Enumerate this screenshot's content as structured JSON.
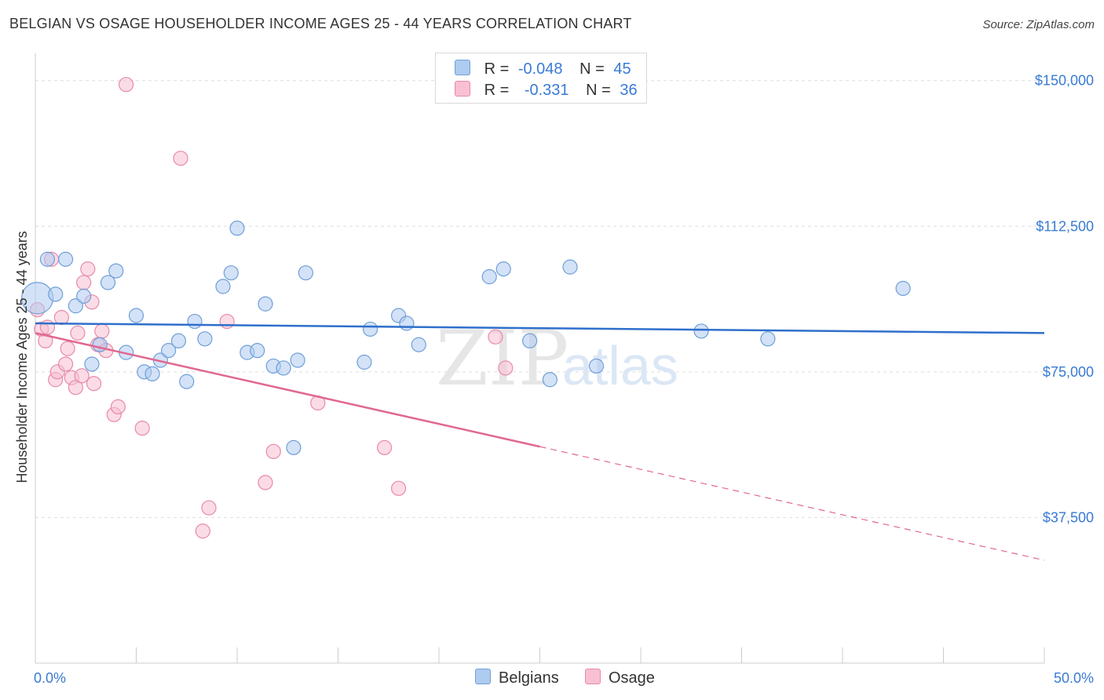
{
  "title": "BELGIAN VS OSAGE HOUSEHOLDER INCOME AGES 25 - 44 YEARS CORRELATION CHART",
  "source": "Source: ZipAtlas.com",
  "watermark": {
    "zip": "ZIP",
    "atlas": "atlas"
  },
  "legend": {
    "belgians": {
      "r_label": "R =",
      "r_value": "-0.048",
      "n_label": "N =",
      "n_value": "45"
    },
    "osage": {
      "r_label": "R =",
      "r_value": "-0.331",
      "n_label": "N =",
      "n_value": "36"
    }
  },
  "bottom_legend": {
    "belgians": "Belgians",
    "osage": "Osage"
  },
  "colors": {
    "belgians_fill": "#aecbf0",
    "belgians_stroke": "#6f9fd8",
    "belgians_line": "#2f6fcc",
    "osage_fill": "#f8c0d2",
    "osage_stroke": "#e88aa8",
    "osage_line": "#e06891",
    "axis_text": "#3a7bd5",
    "grid": "#dddddd"
  },
  "chart_data": {
    "type": "scatter",
    "title": "BELGIAN VS OSAGE HOUSEHOLDER INCOME AGES 25 - 44 YEARS CORRELATION CHART",
    "xlabel": "",
    "ylabel": "Householder Income Ages 25 - 44 years",
    "xlim": [
      0,
      50
    ],
    "ylim": [
      0,
      155000
    ],
    "x_tick_labels": [
      "0.0%",
      "50.0%"
    ],
    "y_ticks": [
      37500,
      75000,
      112500,
      150000
    ],
    "y_tick_labels": [
      "$37,500",
      "$75,000",
      "$112,500",
      "$150,000"
    ],
    "series": [
      {
        "name": "Belgians",
        "r": -0.048,
        "n": 45,
        "trend": {
          "x": [
            0,
            50
          ],
          "y": [
            87500,
            85000
          ],
          "dashed_from": null
        },
        "points": [
          {
            "x": 0.1,
            "y": 94000,
            "big": true
          },
          {
            "x": 0.6,
            "y": 104000
          },
          {
            "x": 1.0,
            "y": 95000
          },
          {
            "x": 1.5,
            "y": 104000
          },
          {
            "x": 2.0,
            "y": 92000
          },
          {
            "x": 2.4,
            "y": 94500
          },
          {
            "x": 2.8,
            "y": 77000
          },
          {
            "x": 3.2,
            "y": 82000
          },
          {
            "x": 3.6,
            "y": 98000
          },
          {
            "x": 4.0,
            "y": 101000
          },
          {
            "x": 4.5,
            "y": 80000
          },
          {
            "x": 5.0,
            "y": 89500
          },
          {
            "x": 5.4,
            "y": 75000
          },
          {
            "x": 5.8,
            "y": 74500
          },
          {
            "x": 6.2,
            "y": 78000
          },
          {
            "x": 6.6,
            "y": 80500
          },
          {
            "x": 7.1,
            "y": 83000
          },
          {
            "x": 7.5,
            "y": 72500
          },
          {
            "x": 7.9,
            "y": 88000
          },
          {
            "x": 8.4,
            "y": 83500
          },
          {
            "x": 9.3,
            "y": 97000
          },
          {
            "x": 9.7,
            "y": 100500
          },
          {
            "x": 10.0,
            "y": 112000
          },
          {
            "x": 10.5,
            "y": 80000
          },
          {
            "x": 11.0,
            "y": 80500
          },
          {
            "x": 11.4,
            "y": 92500
          },
          {
            "x": 11.8,
            "y": 76500
          },
          {
            "x": 12.3,
            "y": 76000
          },
          {
            "x": 13.0,
            "y": 78000
          },
          {
            "x": 13.4,
            "y": 100500
          },
          {
            "x": 12.8,
            "y": 55500
          },
          {
            "x": 16.3,
            "y": 77500
          },
          {
            "x": 16.6,
            "y": 86000
          },
          {
            "x": 18.0,
            "y": 89500
          },
          {
            "x": 18.4,
            "y": 87500
          },
          {
            "x": 19.0,
            "y": 82000
          },
          {
            "x": 22.5,
            "y": 99500
          },
          {
            "x": 23.2,
            "y": 101500
          },
          {
            "x": 24.5,
            "y": 83000
          },
          {
            "x": 25.5,
            "y": 73000
          },
          {
            "x": 26.5,
            "y": 102000
          },
          {
            "x": 27.8,
            "y": 76500
          },
          {
            "x": 33.0,
            "y": 85500
          },
          {
            "x": 36.3,
            "y": 83500
          },
          {
            "x": 43.0,
            "y": 96500
          }
        ]
      },
      {
        "name": "Osage",
        "r": -0.331,
        "n": 36,
        "trend": {
          "x": [
            0,
            50
          ],
          "y": [
            85000,
            26500
          ],
          "dashed_from": 25
        },
        "points": [
          {
            "x": 0.1,
            "y": 91000
          },
          {
            "x": 0.3,
            "y": 86000
          },
          {
            "x": 0.5,
            "y": 83000
          },
          {
            "x": 0.8,
            "y": 104000
          },
          {
            "x": 0.6,
            "y": 86500
          },
          {
            "x": 1.0,
            "y": 73000
          },
          {
            "x": 1.1,
            "y": 75000
          },
          {
            "x": 1.3,
            "y": 89000
          },
          {
            "x": 1.5,
            "y": 77000
          },
          {
            "x": 1.6,
            "y": 81000
          },
          {
            "x": 1.8,
            "y": 73500
          },
          {
            "x": 2.0,
            "y": 71000
          },
          {
            "x": 2.1,
            "y": 85000
          },
          {
            "x": 2.3,
            "y": 74000
          },
          {
            "x": 2.4,
            "y": 98000
          },
          {
            "x": 2.6,
            "y": 101500
          },
          {
            "x": 2.8,
            "y": 93000
          },
          {
            "x": 2.9,
            "y": 72000
          },
          {
            "x": 3.1,
            "y": 82000
          },
          {
            "x": 3.3,
            "y": 85500
          },
          {
            "x": 3.5,
            "y": 80500
          },
          {
            "x": 3.9,
            "y": 64000
          },
          {
            "x": 4.1,
            "y": 66000
          },
          {
            "x": 4.5,
            "y": 149000
          },
          {
            "x": 5.3,
            "y": 60500
          },
          {
            "x": 7.2,
            "y": 130000
          },
          {
            "x": 8.3,
            "y": 34000
          },
          {
            "x": 8.6,
            "y": 40000
          },
          {
            "x": 9.5,
            "y": 88000
          },
          {
            "x": 11.4,
            "y": 46500
          },
          {
            "x": 11.8,
            "y": 54500
          },
          {
            "x": 14.0,
            "y": 67000
          },
          {
            "x": 17.3,
            "y": 55500
          },
          {
            "x": 18.0,
            "y": 45000
          },
          {
            "x": 22.8,
            "y": 84000
          },
          {
            "x": 23.3,
            "y": 76000
          }
        ]
      }
    ]
  }
}
